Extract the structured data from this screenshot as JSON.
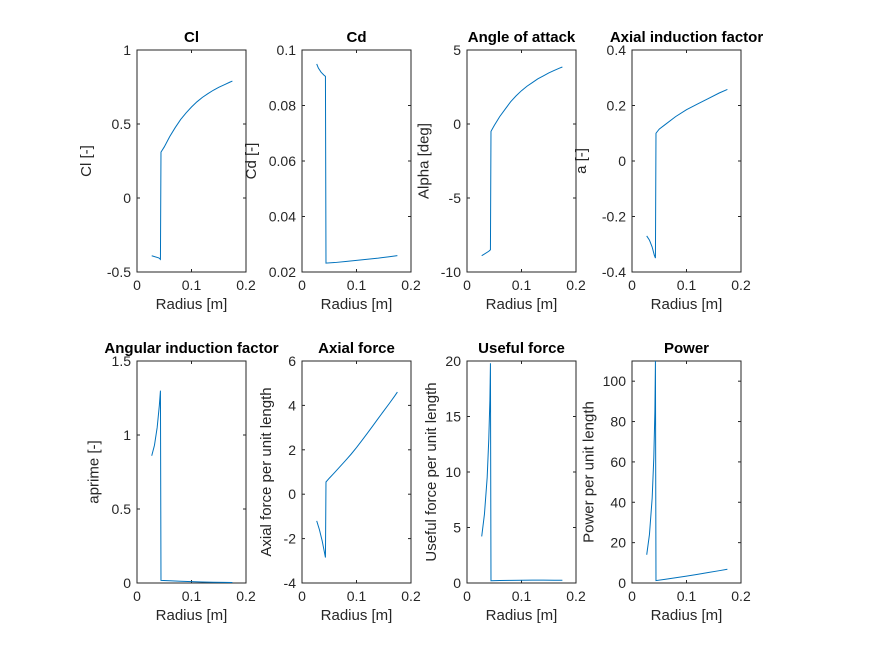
{
  "figure": {
    "background": "#ffffff",
    "line_color": "#0072BD",
    "axes_color": "#262626"
  },
  "chart_data": [
    {
      "type": "line",
      "title": "Cl",
      "xlabel": "Radius [m]",
      "ylabel": "Cl [-]",
      "xlim": [
        0,
        0.2
      ],
      "ylim": [
        -0.5,
        1
      ],
      "xticks": [
        "0",
        "0.1",
        "0.2"
      ],
      "yticks": [
        "-0.5",
        "0",
        "0.5",
        "1"
      ],
      "series": [
        {
          "x": [
            0.027,
            0.04,
            0.043,
            0.044,
            0.05,
            0.06,
            0.07,
            0.08,
            0.09,
            0.1,
            0.11,
            0.12,
            0.13,
            0.14,
            0.15,
            0.16,
            0.17,
            0.175
          ],
          "y": [
            -0.39,
            -0.405,
            -0.415,
            0.31,
            0.345,
            0.415,
            0.475,
            0.53,
            0.575,
            0.615,
            0.65,
            0.68,
            0.705,
            0.728,
            0.748,
            0.765,
            0.782,
            0.79
          ]
        }
      ]
    },
    {
      "type": "line",
      "title": "Cd",
      "xlabel": "Radius [m]",
      "ylabel": "Cd [-]",
      "xlim": [
        0,
        0.2
      ],
      "ylim": [
        0.02,
        0.1
      ],
      "xticks": [
        "0",
        "0.1",
        "0.2"
      ],
      "yticks": [
        "0.02",
        "0.04",
        "0.06",
        "0.08",
        "0.1"
      ],
      "series": [
        {
          "x": [
            0.027,
            0.03,
            0.035,
            0.04,
            0.043,
            0.044,
            0.06,
            0.08,
            0.1,
            0.12,
            0.14,
            0.16,
            0.175
          ],
          "y": [
            0.095,
            0.0935,
            0.092,
            0.091,
            0.0905,
            0.0232,
            0.0234,
            0.0238,
            0.0242,
            0.0246,
            0.025,
            0.0255,
            0.0259
          ]
        }
      ]
    },
    {
      "type": "line",
      "title": "Angle of attack",
      "xlabel": "Radius [m]",
      "ylabel": "Alpha [deg]",
      "xlim": [
        0,
        0.2
      ],
      "ylim": [
        -10,
        5
      ],
      "xticks": [
        "0",
        "0.1",
        "0.2"
      ],
      "yticks": [
        "-10",
        "-5",
        "0",
        "5"
      ],
      "series": [
        {
          "x": [
            0.027,
            0.04,
            0.043,
            0.044,
            0.05,
            0.06,
            0.07,
            0.08,
            0.09,
            0.1,
            0.11,
            0.12,
            0.13,
            0.14,
            0.15,
            0.16,
            0.17,
            0.175
          ],
          "y": [
            -8.9,
            -8.6,
            -8.5,
            -0.5,
            -0.1,
            0.5,
            1.0,
            1.5,
            1.9,
            2.25,
            2.55,
            2.8,
            3.05,
            3.25,
            3.45,
            3.62,
            3.78,
            3.85
          ]
        }
      ]
    },
    {
      "type": "line",
      "title": "Axial induction factor",
      "xlabel": "Radius [m]",
      "ylabel": "a [-]",
      "xlim": [
        0,
        0.2
      ],
      "ylim": [
        -0.4,
        0.4
      ],
      "xticks": [
        "0",
        "0.1",
        "0.2"
      ],
      "yticks": [
        "-0.4",
        "-0.2",
        "0",
        "0.2",
        "0.4"
      ],
      "series": [
        {
          "x": [
            0.027,
            0.032,
            0.037,
            0.041,
            0.043,
            0.044,
            0.05,
            0.06,
            0.08,
            0.1,
            0.12,
            0.14,
            0.16,
            0.175
          ],
          "y": [
            -0.27,
            -0.285,
            -0.31,
            -0.34,
            -0.35,
            0.1,
            0.115,
            0.13,
            0.16,
            0.185,
            0.205,
            0.225,
            0.245,
            0.258
          ]
        }
      ]
    },
    {
      "type": "line",
      "title": "Angular induction factor",
      "xlabel": "",
      "ylabel": "aprime [-]",
      "xlim": [
        0,
        0.2
      ],
      "ylim": [
        0,
        1.5
      ],
      "xticks": [
        "0",
        "0.1",
        "0.2"
      ],
      "yticks": [
        "0",
        "0.5",
        "1",
        "1.5"
      ],
      "series": [
        {
          "x": [
            0.027,
            0.032,
            0.037,
            0.041,
            0.043,
            0.044,
            0.06,
            0.08,
            0.1,
            0.12,
            0.14,
            0.16,
            0.175
          ],
          "y": [
            0.86,
            0.93,
            1.05,
            1.2,
            1.3,
            0.018,
            0.015,
            0.012,
            0.009,
            0.007,
            0.005,
            0.004,
            0.003
          ]
        }
      ]
    },
    {
      "type": "line",
      "title": "Axial force",
      "xlabel": "Radius [m]",
      "ylabel": "Axial force per unit length",
      "xlim": [
        0,
        0.2
      ],
      "ylim": [
        -4,
        6
      ],
      "xticks": [
        "0",
        "0.1",
        "0.2"
      ],
      "yticks": [
        "-4",
        "-2",
        "0",
        "2",
        "4",
        "6"
      ],
      "series": [
        {
          "x": [
            0.027,
            0.032,
            0.037,
            0.041,
            0.043,
            0.044,
            0.05,
            0.06,
            0.07,
            0.08,
            0.09,
            0.1,
            0.11,
            0.12,
            0.13,
            0.14,
            0.15,
            0.16,
            0.17,
            0.175
          ],
          "y": [
            -1.2,
            -1.6,
            -2.1,
            -2.6,
            -2.85,
            0.55,
            0.72,
            0.98,
            1.25,
            1.52,
            1.8,
            2.1,
            2.42,
            2.75,
            3.08,
            3.42,
            3.75,
            4.08,
            4.42,
            4.6
          ]
        }
      ]
    },
    {
      "type": "line",
      "title": "Useful force",
      "xlabel": "Radius [m]",
      "ylabel": "Useful force per unit length",
      "xlim": [
        0,
        0.2
      ],
      "ylim": [
        0,
        20
      ],
      "xticks": [
        "0",
        "0.1",
        "0.2"
      ],
      "yticks": [
        "0",
        "5",
        "10",
        "15",
        "20"
      ],
      "series": [
        {
          "x": [
            0.027,
            0.032,
            0.037,
            0.04,
            0.042,
            0.043,
            0.044,
            0.06,
            0.08,
            0.1,
            0.12,
            0.14,
            0.16,
            0.175
          ],
          "y": [
            4.2,
            6.2,
            9.5,
            13.0,
            16.5,
            19.8,
            0.2,
            0.22,
            0.24,
            0.25,
            0.26,
            0.26,
            0.25,
            0.25
          ]
        }
      ]
    },
    {
      "type": "line",
      "title": "Power",
      "xlabel": "Radius [m]",
      "ylabel": "Power per unit length",
      "xlim": [
        0,
        0.2
      ],
      "ylim": [
        0,
        110
      ],
      "xticks": [
        "0",
        "0.1",
        "0.2"
      ],
      "yticks": [
        "0",
        "20",
        "40",
        "60",
        "80",
        "100"
      ],
      "series": [
        {
          "x": [
            0.027,
            0.032,
            0.037,
            0.04,
            0.042,
            0.043,
            0.044,
            0.06,
            0.08,
            0.1,
            0.12,
            0.14,
            0.16,
            0.175
          ],
          "y": [
            14,
            24,
            42,
            62,
            85,
            110,
            1.2,
            1.8,
            2.6,
            3.4,
            4.3,
            5.2,
            6.1,
            6.8
          ]
        }
      ]
    }
  ],
  "extra_labels": {
    "bottom_xlabel_angular": "Radius [m]"
  }
}
